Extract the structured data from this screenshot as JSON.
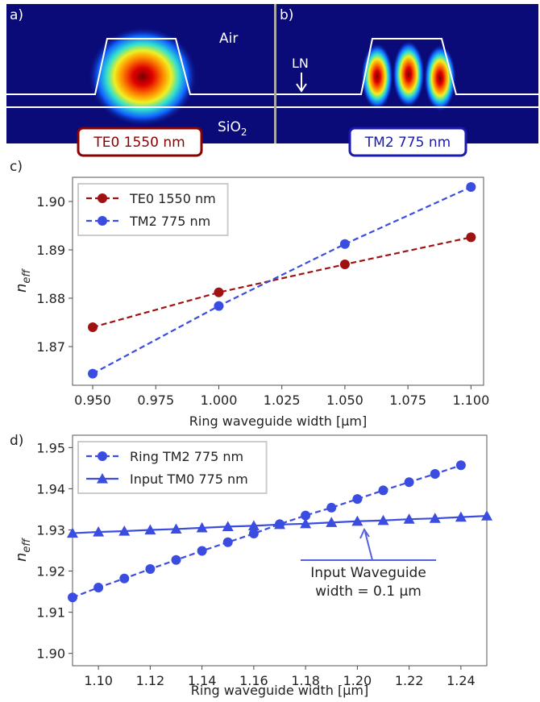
{
  "mode_panels": {
    "a_label": "a)",
    "b_label": "b)",
    "air": "Air",
    "ln": "LN",
    "sio": "SiO",
    "sio_sub": "2",
    "te0_box": "TE0 1550 nm",
    "tm2_box": "TM2 775 nm"
  },
  "chart_data": [
    {
      "type": "line",
      "panel_label": "c)",
      "xlabel": "Ring waveguide width [µm]",
      "ylabel": "n",
      "ylabel_sub": "eff",
      "xlim": [
        0.942,
        1.105
      ],
      "ylim": [
        1.862,
        1.905
      ],
      "xticks": [
        {
          "value": 0.95,
          "label": "0.950"
        },
        0.975,
        {
          "value": 1.0,
          "label": "1.000"
        },
        1.025,
        {
          "value": 1.05,
          "label": "1.050"
        },
        1.075,
        {
          "value": 1.1,
          "label": "1.100"
        }
      ],
      "yticks": [
        1.87,
        1.88,
        1.89,
        {
          "value": 1.9,
          "label": "1.90"
        }
      ],
      "legend": "upper left",
      "series": [
        {
          "name": "TE0 1550 nm",
          "color": "#a01212",
          "marker": "circle",
          "linestyle": "dashed",
          "x": [
            0.95,
            1.0,
            1.05,
            1.1
          ],
          "values": [
            1.874,
            1.8812,
            1.887,
            1.8926
          ]
        },
        {
          "name": "TM2 775 nm",
          "color": "#3b4de0",
          "marker": "circle",
          "linestyle": "dashed",
          "x": [
            0.95,
            1.0,
            1.05,
            1.1
          ],
          "values": [
            1.8644,
            1.8784,
            1.8912,
            1.903
          ]
        }
      ]
    },
    {
      "type": "line",
      "panel_label": "d)",
      "xlabel": "Ring waveguide width [µm]",
      "ylabel": "n",
      "ylabel_sub": "eff",
      "xlim": [
        1.09,
        1.25
      ],
      "ylim": [
        1.897,
        1.953
      ],
      "xticks": [
        {
          "value": 1.1,
          "label": "1.10"
        },
        1.12,
        1.14,
        1.16,
        1.18,
        {
          "value": 1.2,
          "label": "1.20"
        },
        1.22,
        1.24
      ],
      "yticks": [
        {
          "value": 1.9,
          "label": "1.90"
        },
        1.91,
        1.92,
        1.93,
        1.94,
        1.95
      ],
      "legend": "upper left",
      "annotation": [
        "Input Waveguide",
        "width = 0.1 µm"
      ],
      "series": [
        {
          "name": "Ring TM2 775 nm",
          "color": "#3b4de0",
          "marker": "circle",
          "linestyle": "dashed",
          "x": [
            1.09,
            1.1,
            1.11,
            1.12,
            1.13,
            1.14,
            1.15,
            1.16,
            1.17,
            1.18,
            1.19,
            1.2,
            1.21,
            1.22,
            1.23,
            1.24
          ],
          "values": [
            1.9136,
            1.916,
            1.9182,
            1.9205,
            1.9227,
            1.9249,
            1.927,
            1.9291,
            1.9314,
            1.9335,
            1.9354,
            1.9375,
            1.9396,
            1.9416,
            1.9436,
            1.9457
          ]
        },
        {
          "name": "Input TM0 775 nm",
          "color": "#3b4de0",
          "marker": "triangle",
          "linestyle": "solid",
          "x": [
            1.09,
            1.1,
            1.11,
            1.12,
            1.13,
            1.14,
            1.15,
            1.16,
            1.17,
            1.18,
            1.19,
            1.2,
            1.21,
            1.22,
            1.23,
            1.24,
            1.25
          ],
          "values": [
            1.9292,
            1.9295,
            1.9297,
            1.93,
            1.9302,
            1.9305,
            1.9308,
            1.931,
            1.9313,
            1.9315,
            1.9318,
            1.9321,
            1.9323,
            1.9326,
            1.9328,
            1.9331,
            1.9334
          ]
        }
      ]
    }
  ]
}
